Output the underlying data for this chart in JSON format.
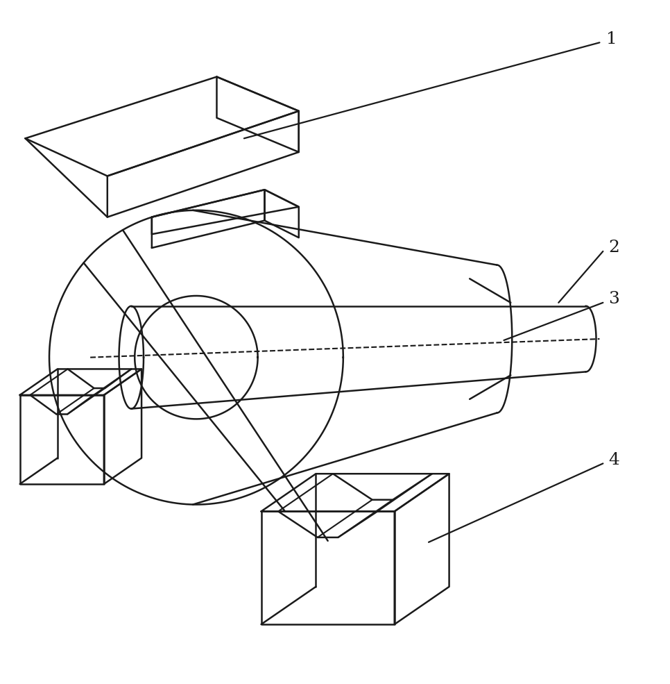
{
  "background_color": "#ffffff",
  "line_color": "#1a1a1a",
  "line_width": 1.8,
  "fig_width": 9.66,
  "fig_height": 9.85,
  "dpi": 100
}
